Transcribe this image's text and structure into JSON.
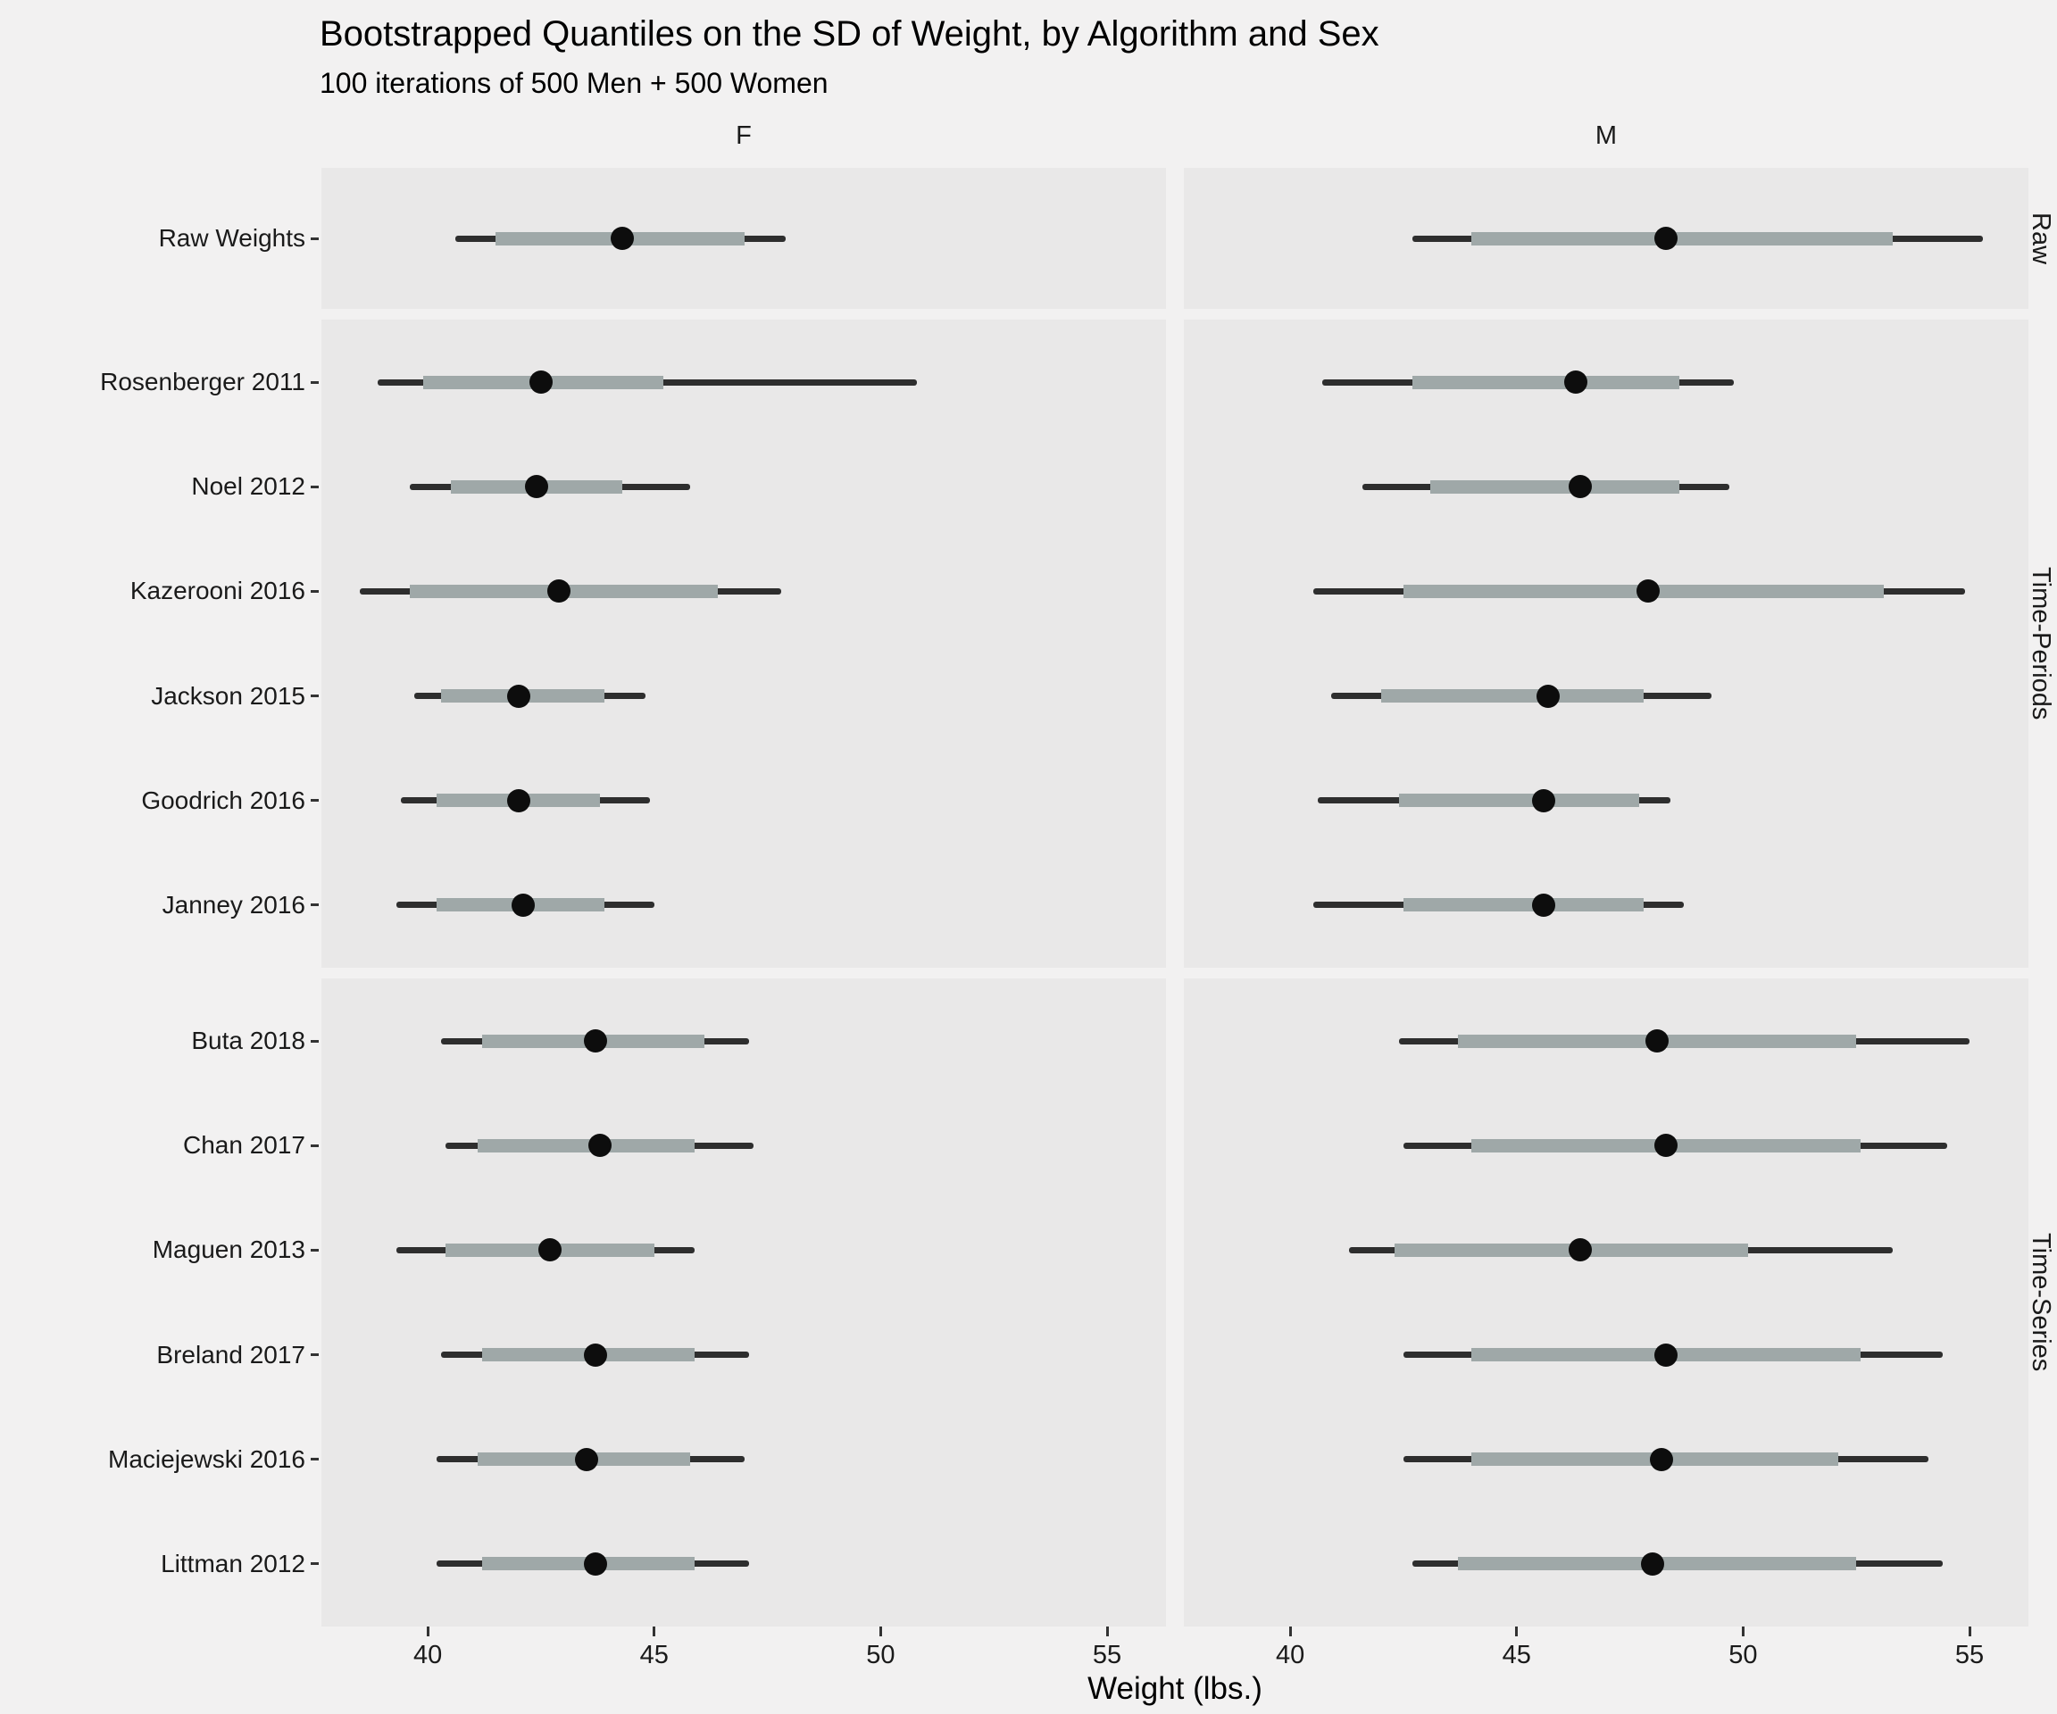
{
  "title": "Bootstrapped Quantiles on the SD of Weight, by Algorithm and Sex",
  "subtitle": "100 iterations of 500 Men + 500 Women",
  "x_axis": {
    "label": "Weight (lbs.)",
    "ticks": [
      40,
      45,
      50,
      55
    ],
    "domain": [
      37.65,
      56.3
    ]
  },
  "col_facets": [
    "F",
    "M"
  ],
  "chart_data": {
    "type": "interval",
    "title": "Bootstrapped Quantiles on the SD of Weight, by Algorithm and Sex",
    "subtitle": "100 iterations of 500 Men + 500 Women",
    "xlabel": "Weight (lbs.)",
    "x_ticks": [
      40,
      45,
      50,
      55
    ],
    "legend": "none",
    "grid": false,
    "encoding": "thin dark line = outer quantile range (lo-hi), thick gray band = inner quantile range (q1-q3), black dot = point estimate (mid)",
    "row_facets": [
      {
        "label": "Raw",
        "rows": [
          {
            "category": "Raw Weights",
            "F": {
              "lo": 40.6,
              "q1": 41.5,
              "mid": 44.3,
              "q3": 47.0,
              "hi": 47.9
            },
            "M": {
              "lo": 42.7,
              "q1": 44.0,
              "mid": 48.3,
              "q3": 53.3,
              "hi": 55.3
            }
          }
        ]
      },
      {
        "label": "Time-Periods",
        "rows": [
          {
            "category": "Rosenberger 2011",
            "F": {
              "lo": 38.9,
              "q1": 39.9,
              "mid": 42.5,
              "q3": 45.2,
              "hi": 50.8
            },
            "M": {
              "lo": 40.7,
              "q1": 42.7,
              "mid": 46.3,
              "q3": 48.6,
              "hi": 49.8
            }
          },
          {
            "category": "Noel 2012",
            "F": {
              "lo": 39.6,
              "q1": 40.5,
              "mid": 42.4,
              "q3": 44.3,
              "hi": 45.8
            },
            "M": {
              "lo": 41.6,
              "q1": 43.1,
              "mid": 46.4,
              "q3": 48.6,
              "hi": 49.7
            }
          },
          {
            "category": "Kazerooni 2016",
            "F": {
              "lo": 38.5,
              "q1": 39.6,
              "mid": 42.9,
              "q3": 46.4,
              "hi": 47.8
            },
            "M": {
              "lo": 40.5,
              "q1": 42.5,
              "mid": 47.9,
              "q3": 53.1,
              "hi": 54.9
            }
          },
          {
            "category": "Jackson 2015",
            "F": {
              "lo": 39.7,
              "q1": 40.3,
              "mid": 42.0,
              "q3": 43.9,
              "hi": 44.8
            },
            "M": {
              "lo": 40.9,
              "q1": 42.0,
              "mid": 45.7,
              "q3": 47.8,
              "hi": 49.3
            }
          },
          {
            "category": "Goodrich 2016",
            "F": {
              "lo": 39.4,
              "q1": 40.2,
              "mid": 42.0,
              "q3": 43.8,
              "hi": 44.9
            },
            "M": {
              "lo": 40.6,
              "q1": 42.4,
              "mid": 45.6,
              "q3": 47.7,
              "hi": 48.4
            }
          },
          {
            "category": "Janney 2016",
            "F": {
              "lo": 39.3,
              "q1": 40.2,
              "mid": 42.1,
              "q3": 43.9,
              "hi": 45.0
            },
            "M": {
              "lo": 40.5,
              "q1": 42.5,
              "mid": 45.6,
              "q3": 47.8,
              "hi": 48.7
            }
          }
        ]
      },
      {
        "label": "Time-Series",
        "rows": [
          {
            "category": "Buta 2018",
            "F": {
              "lo": 40.3,
              "q1": 41.2,
              "mid": 43.7,
              "q3": 46.1,
              "hi": 47.1
            },
            "M": {
              "lo": 42.4,
              "q1": 43.7,
              "mid": 48.1,
              "q3": 52.5,
              "hi": 55.0
            }
          },
          {
            "category": "Chan 2017",
            "F": {
              "lo": 40.4,
              "q1": 41.1,
              "mid": 43.8,
              "q3": 45.9,
              "hi": 47.2
            },
            "M": {
              "lo": 42.5,
              "q1": 44.0,
              "mid": 48.3,
              "q3": 52.6,
              "hi": 54.5
            }
          },
          {
            "category": "Maguen 2013",
            "F": {
              "lo": 39.3,
              "q1": 40.4,
              "mid": 42.7,
              "q3": 45.0,
              "hi": 45.9
            },
            "M": {
              "lo": 41.3,
              "q1": 42.3,
              "mid": 46.4,
              "q3": 50.1,
              "hi": 53.3
            }
          },
          {
            "category": "Breland 2017",
            "F": {
              "lo": 40.3,
              "q1": 41.2,
              "mid": 43.7,
              "q3": 45.9,
              "hi": 47.1
            },
            "M": {
              "lo": 42.5,
              "q1": 44.0,
              "mid": 48.3,
              "q3": 52.6,
              "hi": 54.4
            }
          },
          {
            "category": "Maciejewski 2016",
            "F": {
              "lo": 40.2,
              "q1": 41.1,
              "mid": 43.5,
              "q3": 45.8,
              "hi": 47.0
            },
            "M": {
              "lo": 42.5,
              "q1": 44.0,
              "mid": 48.2,
              "q3": 52.1,
              "hi": 54.1
            }
          },
          {
            "category": "Littman 2012",
            "F": {
              "lo": 40.2,
              "q1": 41.2,
              "mid": 43.7,
              "q3": 45.9,
              "hi": 47.1
            },
            "M": {
              "lo": 42.7,
              "q1": 43.7,
              "mid": 48.0,
              "q3": 52.5,
              "hi": 54.4
            }
          }
        ]
      }
    ],
    "style": {
      "outer_color": "#2e2e2e",
      "inner_color": "#9fa8a8",
      "point_color": "#0d0d0d",
      "panel_bg": "#e9e8e8",
      "page_bg": "#f2f1f1"
    }
  }
}
